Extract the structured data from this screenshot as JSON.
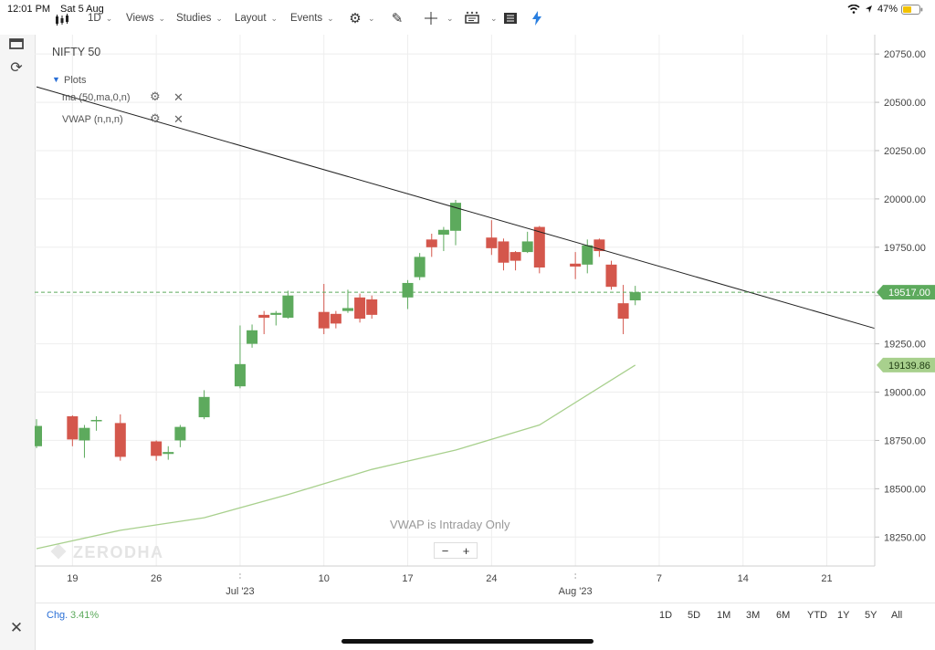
{
  "status": {
    "time": "12:01 PM",
    "date": "Sat 5 Aug",
    "battery": "47%"
  },
  "toolbar": {
    "interval": "1D",
    "views": "Views",
    "studies": "Studies",
    "layout": "Layout",
    "events": "Events"
  },
  "overlay": {
    "symbol": "NIFTY 50",
    "plots_label": "Plots",
    "studies": [
      {
        "label": "ma (50,ma,0,n)"
      },
      {
        "label": "VWAP (n,n,n)"
      }
    ],
    "vwap_notice": "VWAP is Intraday Only",
    "watermark": "ZERODHA"
  },
  "bottom": {
    "chg_label": "Chg.",
    "chg_value": "3.41%",
    "ranges": [
      "1D",
      "5D",
      "1M",
      "3M",
      "6M",
      "YTD",
      "1Y",
      "5Y",
      "All"
    ]
  },
  "zoom": {
    "minus": "−",
    "plus": "+"
  },
  "colors": {
    "up": "#5daa5d",
    "down": "#d4574c",
    "ma": "#a8d08d",
    "trendline": "#222222",
    "price_line": "#5daa5d"
  },
  "chart_data": {
    "type": "candlestick",
    "title": "NIFTY 50",
    "x_ticks": [
      {
        "date": "2023-06-19",
        "label": "19"
      },
      {
        "date": "2023-06-26",
        "label": "26"
      },
      {
        "date": "2023-07-10",
        "label": "10"
      },
      {
        "date": "2023-07-17",
        "label": "17"
      },
      {
        "date": "2023-07-24",
        "label": "24"
      },
      {
        "date": "2023-08-07",
        "label": "7"
      },
      {
        "date": "2023-08-14",
        "label": "14"
      },
      {
        "date": "2023-08-21",
        "label": "21"
      }
    ],
    "month_labels": [
      {
        "date": "2023-07-03",
        "label": "Jul '23"
      },
      {
        "date": "2023-07-31",
        "label": "Aug '23"
      }
    ],
    "y_ticks": [
      18250,
      18500,
      18750,
      19000,
      19250,
      19500,
      19750,
      20000,
      20250,
      20500,
      20750
    ],
    "y_range": [
      18100,
      20850
    ],
    "x_range": [
      "2023-06-16",
      "2023-08-25"
    ],
    "ohlc": [
      {
        "date": "2023-06-16",
        "o": 18720,
        "h": 18860,
        "l": 18710,
        "c": 18825
      },
      {
        "date": "2023-06-19",
        "o": 18875,
        "h": 18880,
        "l": 18720,
        "c": 18755
      },
      {
        "date": "2023-06-20",
        "o": 18750,
        "h": 18830,
        "l": 18660,
        "c": 18815
      },
      {
        "date": "2023-06-21",
        "o": 18850,
        "h": 18875,
        "l": 18800,
        "c": 18856
      },
      {
        "date": "2023-06-23",
        "o": 18840,
        "h": 18885,
        "l": 18645,
        "c": 18665
      },
      {
        "date": "2023-06-26",
        "o": 18745,
        "h": 18750,
        "l": 18645,
        "c": 18670
      },
      {
        "date": "2023-06-27",
        "o": 18680,
        "h": 18720,
        "l": 18650,
        "c": 18690
      },
      {
        "date": "2023-06-28",
        "o": 18750,
        "h": 18830,
        "l": 18715,
        "c": 18820
      },
      {
        "date": "2023-06-30",
        "o": 18870,
        "h": 19010,
        "l": 18860,
        "c": 18975
      },
      {
        "date": "2023-07-03",
        "o": 19030,
        "h": 19345,
        "l": 19020,
        "c": 19145
      },
      {
        "date": "2023-07-04",
        "o": 19250,
        "h": 19350,
        "l": 19230,
        "c": 19320
      },
      {
        "date": "2023-07-05",
        "o": 19400,
        "h": 19420,
        "l": 19300,
        "c": 19385
      },
      {
        "date": "2023-07-06",
        "o": 19400,
        "h": 19420,
        "l": 19345,
        "c": 19410
      },
      {
        "date": "2023-07-07",
        "o": 19385,
        "h": 19525,
        "l": 19380,
        "c": 19500
      },
      {
        "date": "2023-07-10",
        "o": 19415,
        "h": 19560,
        "l": 19300,
        "c": 19330
      },
      {
        "date": "2023-07-11",
        "o": 19405,
        "h": 19420,
        "l": 19330,
        "c": 19355
      },
      {
        "date": "2023-07-12",
        "o": 19420,
        "h": 19530,
        "l": 19410,
        "c": 19435
      },
      {
        "date": "2023-07-13",
        "o": 19490,
        "h": 19510,
        "l": 19360,
        "c": 19380
      },
      {
        "date": "2023-07-14",
        "o": 19480,
        "h": 19500,
        "l": 19380,
        "c": 19400
      },
      {
        "date": "2023-07-17",
        "o": 19490,
        "h": 19580,
        "l": 19430,
        "c": 19565
      },
      {
        "date": "2023-07-18",
        "o": 19595,
        "h": 19720,
        "l": 19580,
        "c": 19700
      },
      {
        "date": "2023-07-19",
        "o": 19790,
        "h": 19820,
        "l": 19700,
        "c": 19750
      },
      {
        "date": "2023-07-20",
        "o": 19815,
        "h": 19855,
        "l": 19730,
        "c": 19840
      },
      {
        "date": "2023-07-21",
        "o": 19835,
        "h": 19995,
        "l": 19760,
        "c": 19980
      },
      {
        "date": "2023-07-24",
        "o": 19800,
        "h": 19890,
        "l": 19710,
        "c": 19745
      },
      {
        "date": "2023-07-25",
        "o": 19780,
        "h": 19795,
        "l": 19630,
        "c": 19670
      },
      {
        "date": "2023-07-26",
        "o": 19725,
        "h": 19730,
        "l": 19630,
        "c": 19680
      },
      {
        "date": "2023-07-27",
        "o": 19725,
        "h": 19830,
        "l": 19720,
        "c": 19780
      },
      {
        "date": "2023-07-28",
        "o": 19855,
        "h": 19860,
        "l": 19615,
        "c": 19645
      },
      {
        "date": "2023-07-31",
        "o": 19665,
        "h": 19725,
        "l": 19585,
        "c": 19650
      },
      {
        "date": "2023-08-01",
        "o": 19660,
        "h": 19790,
        "l": 19615,
        "c": 19760
      },
      {
        "date": "2023-08-02",
        "o": 19790,
        "h": 19795,
        "l": 19700,
        "c": 19730
      },
      {
        "date": "2023-08-03",
        "o": 19660,
        "h": 19680,
        "l": 19530,
        "c": 19545
      },
      {
        "date": "2023-08-04",
        "o": 19460,
        "h": 19555,
        "l": 19300,
        "c": 19380
      },
      {
        "date": "2023-08-05",
        "o": 19475,
        "h": 19550,
        "l": 19450,
        "c": 19517
      }
    ],
    "series": [
      {
        "name": "ma (50,ma,0,n)",
        "type": "line",
        "last_value": 19139.86,
        "points": [
          {
            "date": "2023-06-16",
            "v": 18190
          },
          {
            "date": "2023-06-23",
            "v": 18285
          },
          {
            "date": "2023-06-30",
            "v": 18350
          },
          {
            "date": "2023-07-07",
            "v": 18470
          },
          {
            "date": "2023-07-14",
            "v": 18600
          },
          {
            "date": "2023-07-21",
            "v": 18700
          },
          {
            "date": "2023-07-28",
            "v": 18830
          },
          {
            "date": "2023-08-05",
            "v": 18965
          },
          {
            "date": "2023-08-12",
            "v": 19075
          },
          {
            "date": "2023-08-05",
            "v": 19139.86
          }
        ]
      }
    ],
    "trendline": [
      {
        "date": "2023-06-16",
        "v": 20580
      },
      {
        "date": "2023-08-25",
        "v": 19330
      }
    ],
    "last_price": 19517.0
  }
}
